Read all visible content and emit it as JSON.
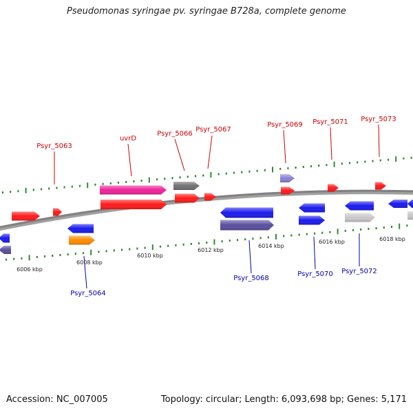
{
  "map": {
    "title": "Pseudomonas syringae pv. syringae B728a, complete genome",
    "accession_text": "Accession: NC_007005",
    "topology_text": "Topology: circular; Length: 6,093,698 bp; Genes: 5,171"
  },
  "colors": {
    "plus_label": "#cc0000",
    "minus_label": "#0000aa",
    "backbone": "#808080",
    "tick": "#2e8b2e",
    "red": "#ff1a1a",
    "blue": "#1a1aee",
    "magenta": "#ee2299",
    "gray": "#707070",
    "purple": "#5a4f9e",
    "lavender": "#8a7fd6",
    "orange": "#ff8c00",
    "lightgray": "#c8c8c8"
  },
  "kbp_ticks": [
    "6006 kbp",
    "6008 kbp",
    "6010 kbp",
    "6012 kbp",
    "6014 kbp",
    "6016 kbp",
    "6018 kbp"
  ],
  "genes_plus": [
    {
      "label": "Psyr_5063",
      "color": "red"
    },
    {
      "label": "uvrD",
      "color": "magenta"
    },
    {
      "label": "Psyr_5066",
      "color": "gray"
    },
    {
      "label": "Psyr_5067",
      "color": "red"
    },
    {
      "label": "Psyr_5069",
      "color": "lavender"
    },
    {
      "label": "Psyr_5071",
      "color": "red"
    },
    {
      "label": "Psyr_5073",
      "color": "red"
    }
  ],
  "genes_minus": [
    {
      "label": "Psyr_5064",
      "color": "orange"
    },
    {
      "label": "Psyr_5068",
      "color": "purple"
    },
    {
      "label": "Psyr_5070",
      "color": "blue"
    },
    {
      "label": "Psyr_5072",
      "color": "lightgray"
    }
  ]
}
